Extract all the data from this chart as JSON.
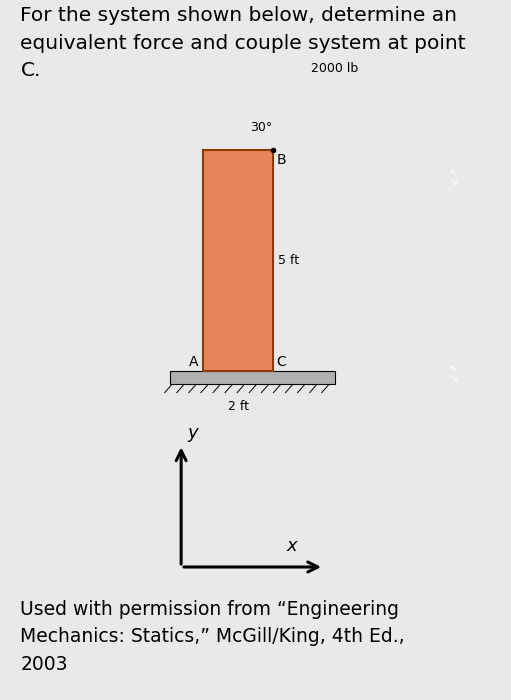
{
  "title_text": "For the system shown below, determine an\nequivalent force and couple system at point\nC.",
  "caption_text": "Used with permission from “Engineering\nMechanics: Statics,” McGill/King, 4th Ed.,\n2003",
  "bg_color": "#e9e9e9",
  "panel_bg": "#ffffff",
  "bar_color": "#e8845a",
  "bar_edge_color": "#8B3A00",
  "ground_face_color": "#b0b0b0",
  "ground_edge_color": "#888888",
  "force_arrow_color": "#cc2200",
  "force_label": "2000 lb",
  "angle_label": "30°",
  "dim_label_h": "5 ft",
  "dim_label_w": "2 ft",
  "point_A": "A",
  "point_B": "B",
  "point_C": "C",
  "title_fontsize": 14.5,
  "caption_fontsize": 13.5,
  "diagram_label_fontsize": 10,
  "axis_label_fontsize": 13
}
